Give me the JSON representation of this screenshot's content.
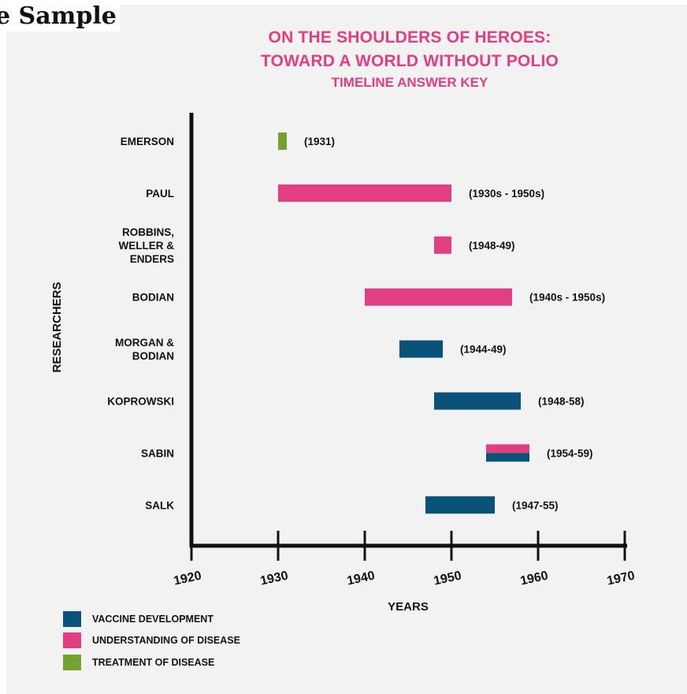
{
  "heading": "e Sample",
  "colors": {
    "vaccine": "#0a5279",
    "understanding": "#e23e82",
    "treatment": "#75a22e",
    "title": "#e23e82"
  },
  "chart_data": {
    "type": "gantt",
    "title_line1": "ON THE SHOULDERS OF HEROES:",
    "title_line2": "TOWARD A WORLD WITHOUT POLIO",
    "subtitle": "TIMELINE ANSWER KEY",
    "xlabel": "YEARS",
    "ylabel": "RESEARCHERS",
    "xlim": [
      1920,
      1970
    ],
    "xticks": [
      1920,
      1930,
      1940,
      1950,
      1960,
      1970
    ],
    "grid": false,
    "legend_position": "bottom-left",
    "legend": [
      {
        "key": "vaccine",
        "label": "VACCINE DEVELOPMENT"
      },
      {
        "key": "understanding",
        "label": "UNDERSTANDING OF DISEASE"
      },
      {
        "key": "treatment",
        "label": "TREATMENT OF DISEASE"
      }
    ],
    "rows": [
      {
        "researcher": [
          "EMERSON"
        ],
        "start": 1930,
        "end": 1931,
        "label": "(1931)",
        "categories": [
          "treatment"
        ]
      },
      {
        "researcher": [
          "PAUL"
        ],
        "start": 1930,
        "end": 1950,
        "label": "(1930s - 1950s)",
        "categories": [
          "understanding"
        ]
      },
      {
        "researcher": [
          "ROBBINS,",
          "WELLER &",
          "ENDERS"
        ],
        "start": 1948,
        "end": 1950,
        "label": "(1948-49)",
        "categories": [
          "understanding"
        ]
      },
      {
        "researcher": [
          "BODIAN"
        ],
        "start": 1940,
        "end": 1957,
        "label": "(1940s - 1950s)",
        "categories": [
          "understanding"
        ]
      },
      {
        "researcher": [
          "MORGAN &",
          "BODIAN"
        ],
        "start": 1944,
        "end": 1949,
        "label": "(1944-49)",
        "categories": [
          "vaccine"
        ]
      },
      {
        "researcher": [
          "KOPROWSKI"
        ],
        "start": 1948,
        "end": 1958,
        "label": "(1948-58)",
        "categories": [
          "vaccine"
        ]
      },
      {
        "researcher": [
          "SABIN"
        ],
        "start": 1954,
        "end": 1959,
        "label": "(1954-59)",
        "categories": [
          "understanding",
          "vaccine"
        ]
      },
      {
        "researcher": [
          "SALK"
        ],
        "start": 1947,
        "end": 1955,
        "label": "(1947-55)",
        "categories": [
          "vaccine"
        ]
      }
    ]
  }
}
